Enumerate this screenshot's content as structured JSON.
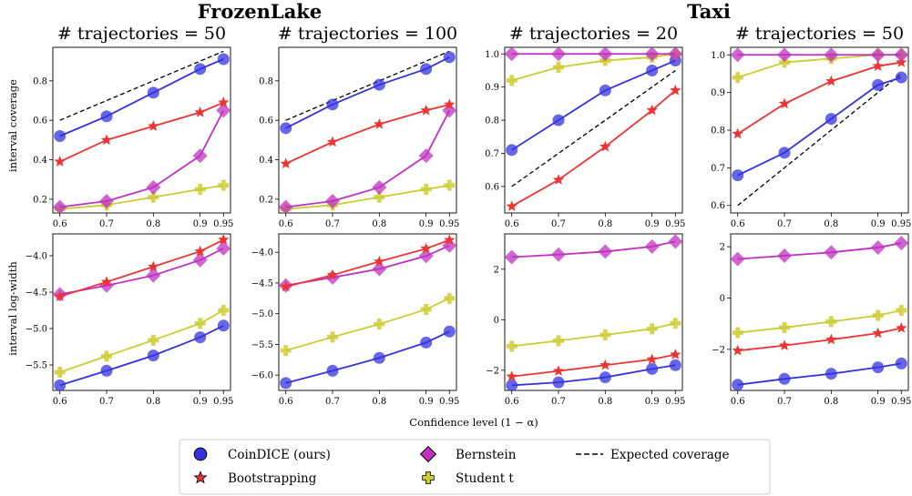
{
  "group_titles": [
    "FrozenLake",
    "Taxi"
  ],
  "row_labels": [
    "interval coverage",
    "interval log-width"
  ],
  "xlabel": "Confidence level (1 − α)",
  "legend": [
    {
      "key": "coindice",
      "label": "CoinDICE (ours)"
    },
    {
      "key": "bernstein",
      "label": "Bernstein"
    },
    {
      "key": "expected",
      "label": "Expected coverage"
    },
    {
      "key": "bootstrap",
      "label": "Bootstrapping"
    },
    {
      "key": "student",
      "label": "Student t"
    }
  ],
  "colors": {
    "coindice": "#3333dd",
    "bernstein": "#c030c0",
    "bootstrap": "#ee3333",
    "student": "#cccc33",
    "expected": "#000000"
  },
  "chart_data": [
    {
      "type": "line",
      "group": "FrozenLake",
      "title": "# trajectories = 50",
      "ylabel": "interval coverage",
      "x": [
        0.6,
        0.7,
        0.8,
        0.9,
        0.95
      ],
      "xticks": [
        "0.6",
        "0.7",
        "0.8",
        "0.9",
        "0.95"
      ],
      "ylim": [
        0.13,
        0.97
      ],
      "yticks": [
        0.2,
        0.4,
        0.6,
        0.8
      ],
      "ytick_labels": [
        "0.2",
        "0.4",
        "0.6",
        "0.8"
      ],
      "series": [
        {
          "key": "expected",
          "values": [
            0.6,
            0.7,
            0.8,
            0.9,
            0.95
          ]
        },
        {
          "key": "student",
          "values": [
            0.15,
            0.17,
            0.21,
            0.25,
            0.27
          ]
        },
        {
          "key": "bernstein",
          "values": [
            0.16,
            0.19,
            0.26,
            0.42,
            0.65
          ]
        },
        {
          "key": "bootstrap",
          "values": [
            0.39,
            0.5,
            0.57,
            0.64,
            0.69
          ]
        },
        {
          "key": "coindice",
          "values": [
            0.52,
            0.62,
            0.74,
            0.86,
            0.91
          ]
        }
      ]
    },
    {
      "type": "line",
      "group": "FrozenLake",
      "title": "# trajectories = 100",
      "ylabel": "",
      "x": [
        0.6,
        0.7,
        0.8,
        0.9,
        0.95
      ],
      "xticks": [
        "0.6",
        "0.7",
        "0.8",
        "0.9",
        "0.95"
      ],
      "ylim": [
        0.13,
        0.97
      ],
      "yticks": [
        0.2,
        0.4,
        0.6,
        0.8
      ],
      "ytick_labels": [
        "0.2",
        "0.4",
        "0.6",
        "0.8"
      ],
      "series": [
        {
          "key": "expected",
          "values": [
            0.6,
            0.7,
            0.8,
            0.9,
            0.95
          ]
        },
        {
          "key": "student",
          "values": [
            0.15,
            0.17,
            0.21,
            0.25,
            0.27
          ]
        },
        {
          "key": "bernstein",
          "values": [
            0.16,
            0.19,
            0.26,
            0.42,
            0.65
          ]
        },
        {
          "key": "bootstrap",
          "values": [
            0.38,
            0.49,
            0.58,
            0.65,
            0.68
          ]
        },
        {
          "key": "coindice",
          "values": [
            0.56,
            0.68,
            0.78,
            0.86,
            0.92
          ]
        }
      ]
    },
    {
      "type": "line",
      "group": "Taxi",
      "title": "# trajectories = 20",
      "ylabel": "",
      "x": [
        0.6,
        0.7,
        0.8,
        0.9,
        0.95
      ],
      "xticks": [
        "0.6",
        "0.7",
        "0.8",
        "0.9",
        "0.95"
      ],
      "ylim": [
        0.52,
        1.02
      ],
      "yticks": [
        0.6,
        0.7,
        0.8,
        0.9,
        1.0
      ],
      "ytick_labels": [
        "0.6",
        "0.7",
        "0.8",
        "0.9",
        "1.0"
      ],
      "series": [
        {
          "key": "expected",
          "values": [
            0.6,
            0.7,
            0.8,
            0.9,
            0.95
          ]
        },
        {
          "key": "bootstrap",
          "values": [
            0.54,
            0.62,
            0.72,
            0.83,
            0.89
          ]
        },
        {
          "key": "coindice",
          "values": [
            0.71,
            0.8,
            0.89,
            0.95,
            0.98
          ]
        },
        {
          "key": "student",
          "values": [
            0.92,
            0.96,
            0.98,
            0.99,
            1.0
          ]
        },
        {
          "key": "bernstein",
          "values": [
            1.0,
            1.0,
            1.0,
            1.0,
            1.0
          ]
        }
      ]
    },
    {
      "type": "line",
      "group": "Taxi",
      "title": "# trajectories = 50",
      "ylabel": "",
      "x": [
        0.6,
        0.7,
        0.8,
        0.9,
        0.95
      ],
      "xticks": [
        "0.6",
        "0.7",
        "0.8",
        "0.9",
        "0.95"
      ],
      "ylim": [
        0.58,
        1.02
      ],
      "yticks": [
        0.6,
        0.7,
        0.8,
        0.9,
        1.0
      ],
      "ytick_labels": [
        "0.6",
        "0.7",
        "0.8",
        "0.9",
        "1.0"
      ],
      "series": [
        {
          "key": "expected",
          "values": [
            0.6,
            0.7,
            0.8,
            0.9,
            0.95
          ]
        },
        {
          "key": "coindice",
          "values": [
            0.68,
            0.74,
            0.83,
            0.92,
            0.94
          ]
        },
        {
          "key": "bootstrap",
          "values": [
            0.79,
            0.87,
            0.93,
            0.97,
            0.98
          ]
        },
        {
          "key": "student",
          "values": [
            0.94,
            0.98,
            0.99,
            1.0,
            1.0
          ]
        },
        {
          "key": "bernstein",
          "values": [
            1.0,
            1.0,
            1.0,
            1.0,
            1.0
          ]
        }
      ]
    },
    {
      "type": "line",
      "group": "FrozenLake",
      "title": "",
      "ylabel": "interval log-width",
      "x": [
        0.6,
        0.7,
        0.8,
        0.9,
        0.95
      ],
      "xticks": [
        "0.6",
        "0.7",
        "0.8",
        "0.9",
        "0.95"
      ],
      "ylim": [
        -5.85,
        -3.7
      ],
      "yticks": [
        -5.5,
        -5.0,
        -4.5,
        -4.0
      ],
      "ytick_labels": [
        "−5.5",
        "−5.0",
        "−4.5",
        "−4.0"
      ],
      "series": [
        {
          "key": "coindice",
          "values": [
            -5.78,
            -5.58,
            -5.37,
            -5.12,
            -4.96
          ]
        },
        {
          "key": "student",
          "values": [
            -5.6,
            -5.38,
            -5.16,
            -4.93,
            -4.75
          ]
        },
        {
          "key": "bernstein",
          "values": [
            -4.53,
            -4.41,
            -4.27,
            -4.06,
            -3.9
          ]
        },
        {
          "key": "bootstrap",
          "values": [
            -4.56,
            -4.36,
            -4.15,
            -3.94,
            -3.78
          ]
        }
      ]
    },
    {
      "type": "line",
      "group": "FrozenLake",
      "title": "",
      "ylabel": "",
      "x": [
        0.6,
        0.7,
        0.8,
        0.9,
        0.95
      ],
      "xticks": [
        "0.6",
        "0.7",
        "0.8",
        "0.9",
        "0.95"
      ],
      "ylim": [
        -6.25,
        -3.7
      ],
      "yticks": [
        -6.0,
        -5.5,
        -5.0,
        -4.5,
        -4.0
      ],
      "ytick_labels": [
        "−6.0",
        "−5.5",
        "−5.0",
        "−4.5",
        "−4.0"
      ],
      "series": [
        {
          "key": "coindice",
          "values": [
            -6.13,
            -5.93,
            -5.72,
            -5.47,
            -5.29
          ]
        },
        {
          "key": "student",
          "values": [
            -5.6,
            -5.38,
            -5.17,
            -4.93,
            -4.75
          ]
        },
        {
          "key": "bernstein",
          "values": [
            -4.54,
            -4.41,
            -4.27,
            -4.06,
            -3.89
          ]
        },
        {
          "key": "bootstrap",
          "values": [
            -4.56,
            -4.37,
            -4.15,
            -3.94,
            -3.8
          ]
        }
      ]
    },
    {
      "type": "line",
      "group": "Taxi",
      "title": "",
      "ylabel": "",
      "x": [
        0.6,
        0.7,
        0.8,
        0.9,
        0.95
      ],
      "xticks": [
        "0.6",
        "0.7",
        "0.8",
        "0.9",
        "0.95"
      ],
      "ylim": [
        -2.8,
        3.4
      ],
      "yticks": [
        -2,
        0,
        2
      ],
      "ytick_labels": [
        "−2",
        "0",
        "2"
      ],
      "series": [
        {
          "key": "coindice",
          "values": [
            -2.6,
            -2.48,
            -2.28,
            -1.95,
            -1.8
          ]
        },
        {
          "key": "bootstrap",
          "values": [
            -2.25,
            -2.03,
            -1.8,
            -1.57,
            -1.38
          ]
        },
        {
          "key": "student",
          "values": [
            -1.05,
            -0.83,
            -0.6,
            -0.36,
            -0.14
          ]
        },
        {
          "key": "bernstein",
          "values": [
            2.48,
            2.58,
            2.7,
            2.9,
            3.1
          ]
        }
      ]
    },
    {
      "type": "line",
      "group": "Taxi",
      "title": "",
      "ylabel": "",
      "x": [
        0.6,
        0.7,
        0.8,
        0.9,
        0.95
      ],
      "xticks": [
        "0.6",
        "0.7",
        "0.8",
        "0.9",
        "0.95"
      ],
      "ylim": [
        -3.6,
        2.5
      ],
      "yticks": [
        -2,
        0,
        2
      ],
      "ytick_labels": [
        "−2",
        "0",
        "2"
      ],
      "series": [
        {
          "key": "coindice",
          "values": [
            -3.38,
            -3.15,
            -2.95,
            -2.7,
            -2.55
          ]
        },
        {
          "key": "bootstrap",
          "values": [
            -2.05,
            -1.85,
            -1.62,
            -1.37,
            -1.17
          ]
        },
        {
          "key": "student",
          "values": [
            -1.35,
            -1.15,
            -0.92,
            -0.68,
            -0.48
          ]
        },
        {
          "key": "bernstein",
          "values": [
            1.52,
            1.65,
            1.78,
            1.97,
            2.14
          ]
        }
      ]
    }
  ]
}
